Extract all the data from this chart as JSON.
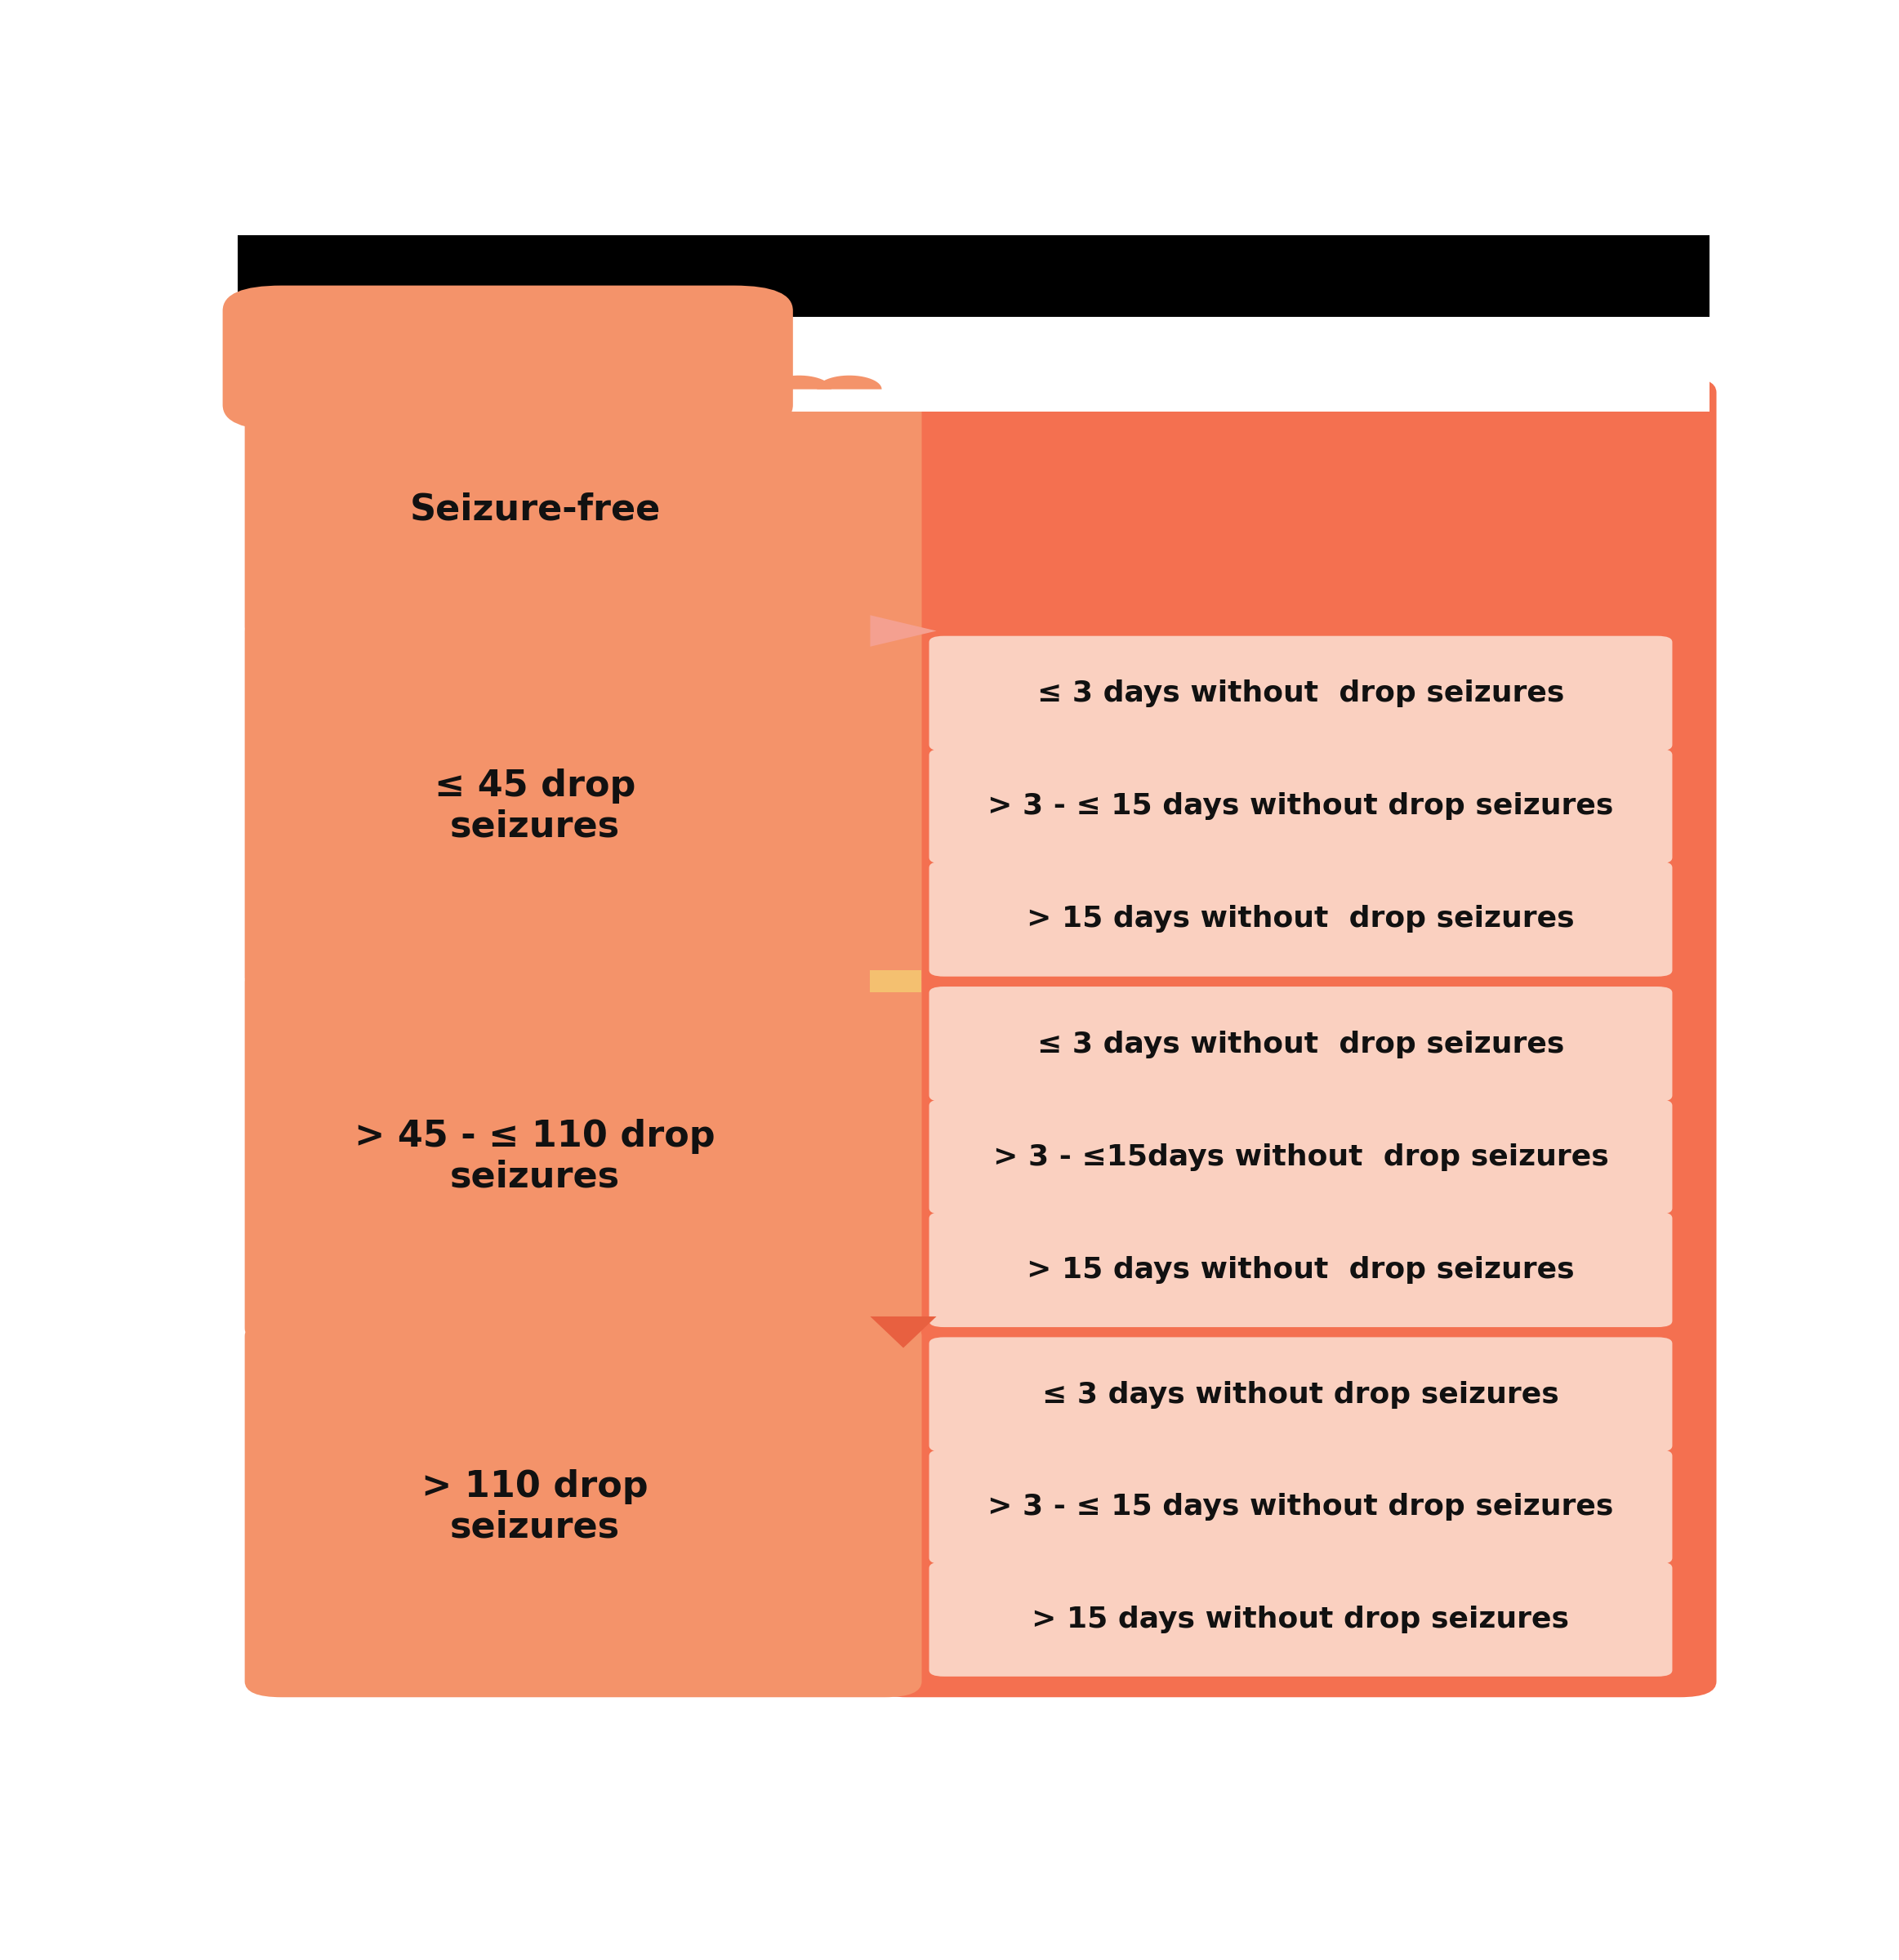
{
  "fig_width": 23.25,
  "fig_height": 24.0,
  "bg_color": "#ffffff",
  "left_panel_color": "#F4936A",
  "right_panel_color": "#F47050",
  "sub_box_color": "#FAD0C0",
  "main_states": [
    "Seizure-free",
    "≤ 45 drop\nseizures",
    "> 45 - ≤ 110 drop\nseizures",
    "> 110 drop\nseizures"
  ],
  "sub_states_g2": [
    "≤ 3 days without  drop seizures",
    "> 3 - ≤ 15 days without drop seizures",
    "> 15 days without  drop seizures"
  ],
  "sub_states_g3": [
    "≤ 3 days without  drop seizures",
    "> 3 - ≤15days without  drop seizures",
    "> 15 days without  drop seizures"
  ],
  "sub_states_g4": [
    "≤ 3 days without drop seizures",
    "> 3 - ≤ 15 days without drop seizures",
    "> 15 days without drop seizures"
  ],
  "text_color": "#111111",
  "font_size_main": 32,
  "font_size_sub": 26,
  "connector_color": "#F4936A"
}
